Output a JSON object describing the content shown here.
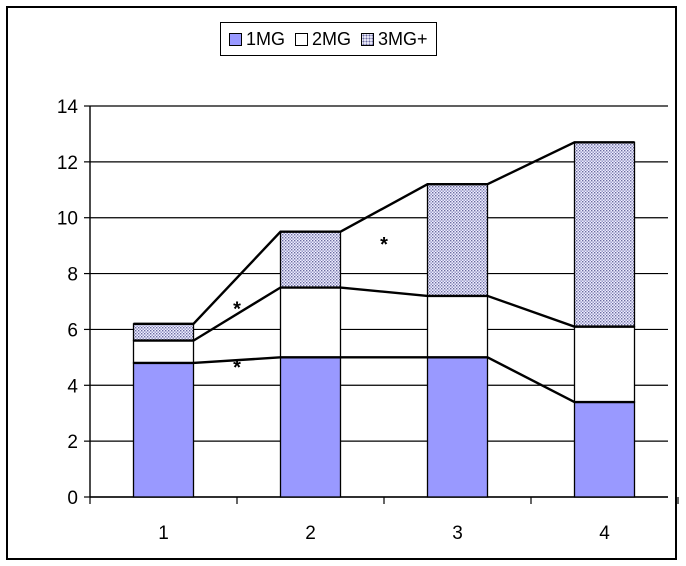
{
  "chart_data": {
    "type": "bar",
    "stacked": true,
    "categories": [
      "1",
      "2",
      "3",
      "4"
    ],
    "series": [
      {
        "name": "1MG",
        "values": [
          4.8,
          5.0,
          5.0,
          3.4
        ],
        "color": "#9999ff"
      },
      {
        "name": "2MG",
        "values": [
          0.8,
          2.5,
          2.2,
          2.7
        ],
        "color": "#ffffff"
      },
      {
        "name": "3MG+",
        "values": [
          0.6,
          2.0,
          4.0,
          6.6
        ],
        "color": "#d8d8f0",
        "pattern": "dotted"
      }
    ],
    "ylim": [
      0,
      14
    ],
    "yticks": [
      "0",
      "2",
      "4",
      "6",
      "8",
      "10",
      "12",
      "14"
    ],
    "grid": true,
    "legend_position": "top",
    "connector_lines": true,
    "annotations": [
      "*",
      "*",
      "*"
    ]
  },
  "legend": {
    "items": [
      "1MG",
      "2MG",
      "3MG+"
    ]
  }
}
